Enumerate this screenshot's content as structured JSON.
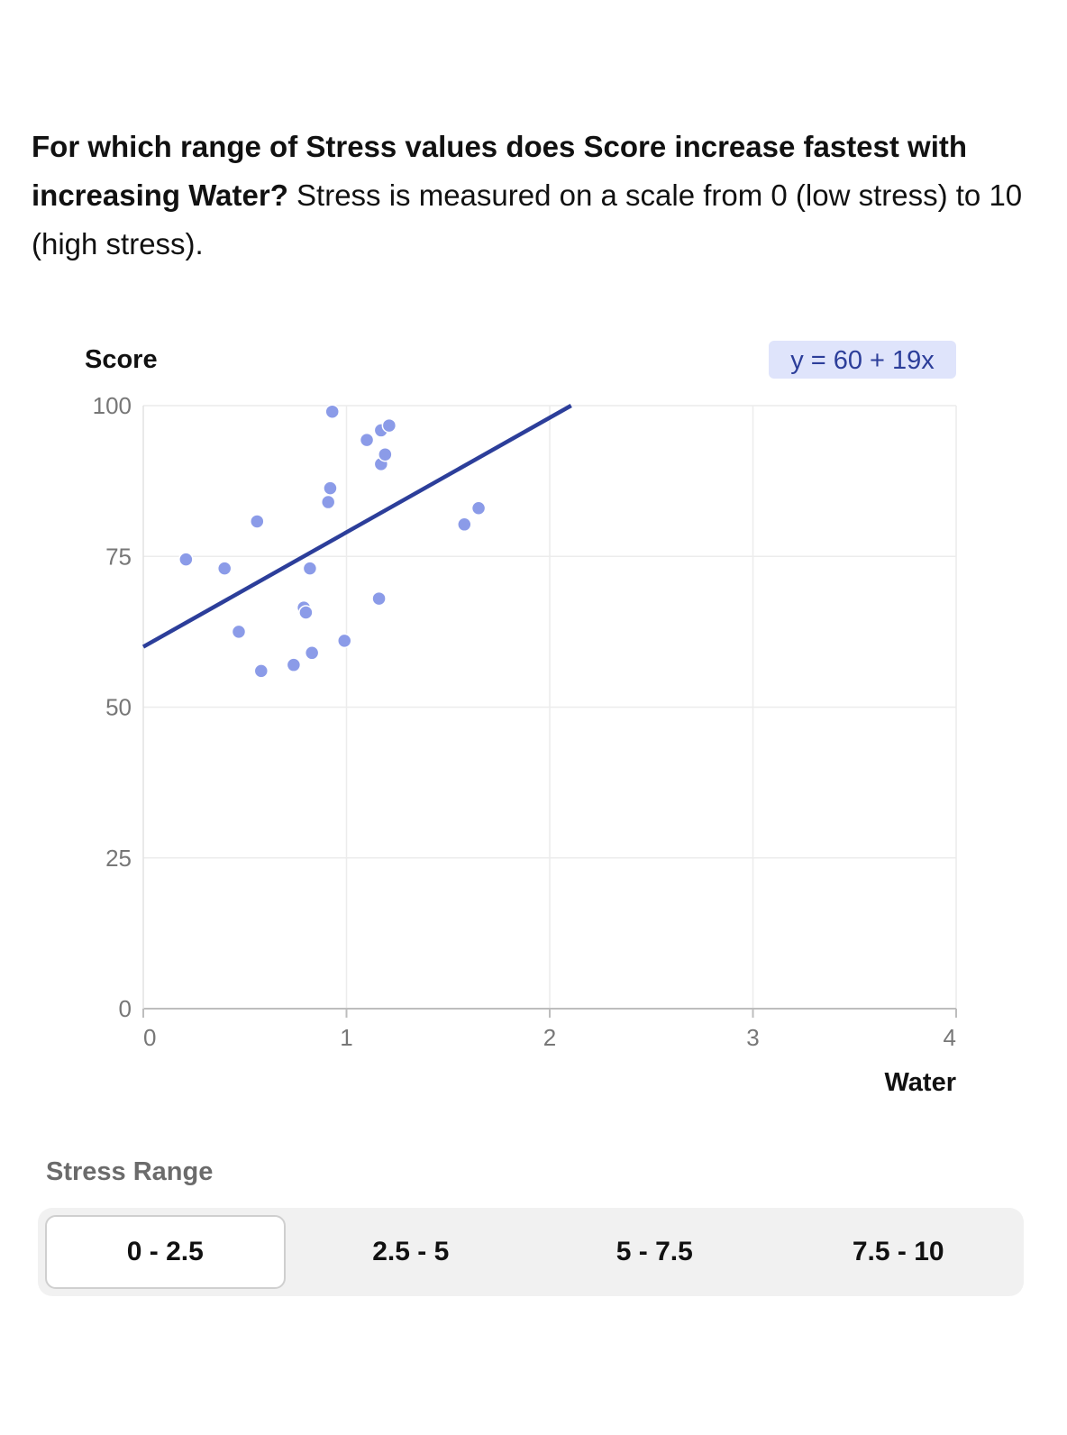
{
  "question": {
    "bold": "For which range of Stress values does Score increase fastest with increasing Water?",
    "rest": " Stress is measured on a scale from 0 (low stress) to 10 (high stress)."
  },
  "chart_data": {
    "type": "scatter",
    "xlabel": "Water",
    "ylabel": "Score",
    "xlim": [
      0,
      4
    ],
    "ylim": [
      0,
      100
    ],
    "xticks": [
      0,
      1,
      2,
      3,
      4
    ],
    "yticks": [
      0,
      25,
      50,
      75,
      100
    ],
    "grid": true,
    "point_color": "#8b9be8",
    "line_color": "#2c3e9a",
    "equation": "y = 60 + 19x",
    "fit": {
      "intercept": 60,
      "slope": 19
    },
    "points": [
      {
        "x": 0.21,
        "y": 74.5
      },
      {
        "x": 0.4,
        "y": 73.0
      },
      {
        "x": 0.47,
        "y": 62.5
      },
      {
        "x": 0.56,
        "y": 80.8
      },
      {
        "x": 0.58,
        "y": 56.0
      },
      {
        "x": 0.74,
        "y": 57.0
      },
      {
        "x": 0.79,
        "y": 66.5
      },
      {
        "x": 0.8,
        "y": 65.7
      },
      {
        "x": 0.82,
        "y": 73.0
      },
      {
        "x": 0.83,
        "y": 59.0
      },
      {
        "x": 0.91,
        "y": 84.0
      },
      {
        "x": 0.92,
        "y": 86.3
      },
      {
        "x": 0.93,
        "y": 99.0
      },
      {
        "x": 0.99,
        "y": 61.0
      },
      {
        "x": 1.1,
        "y": 94.3
      },
      {
        "x": 1.16,
        "y": 68.0
      },
      {
        "x": 1.17,
        "y": 90.3
      },
      {
        "x": 1.17,
        "y": 95.9
      },
      {
        "x": 1.19,
        "y": 91.9
      },
      {
        "x": 1.21,
        "y": 96.7
      },
      {
        "x": 1.58,
        "y": 80.3
      },
      {
        "x": 1.65,
        "y": 83.0
      }
    ]
  },
  "range_selector": {
    "title": "Stress Range",
    "options": [
      "0 - 2.5",
      "2.5 - 5",
      "5 - 7.5",
      "7.5 - 10"
    ],
    "selected": "0 - 2.5"
  }
}
